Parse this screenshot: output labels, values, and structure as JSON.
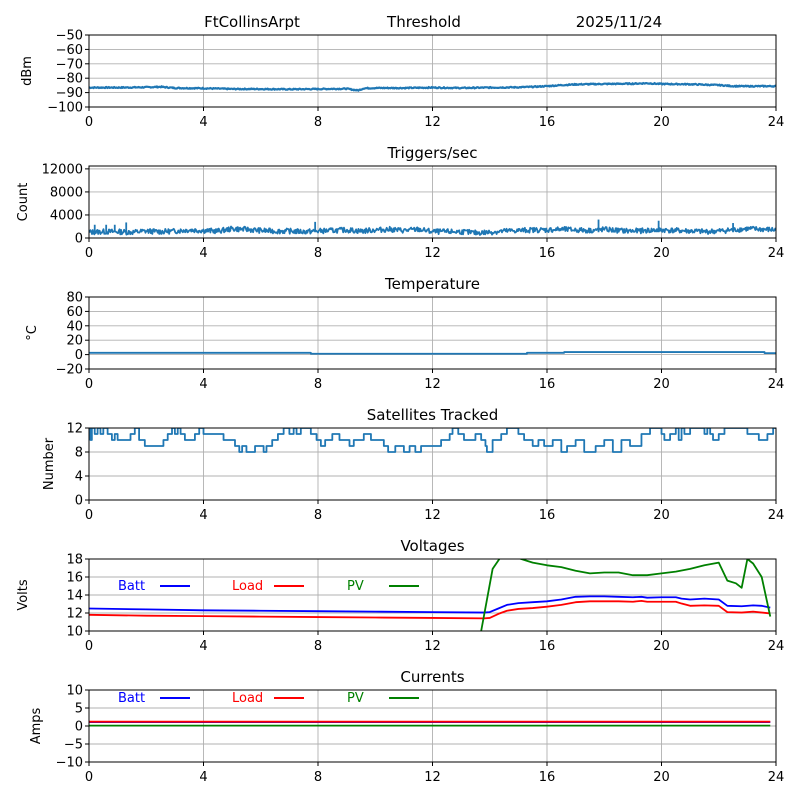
{
  "header": {
    "station": "FtCollinsArpt",
    "mode": "Threshold",
    "date": "2025/11/24"
  },
  "chart_data": [
    {
      "id": "threshold",
      "type": "line",
      "title": "",
      "xlabel": "",
      "ylabel": "dBm",
      "xlim": [
        0,
        24
      ],
      "ylim": [
        -100,
        -50
      ],
      "xticks": [
        0,
        4,
        8,
        12,
        16,
        20,
        24
      ],
      "yticks": [
        -100,
        -90,
        -80,
        -70,
        -60,
        -50
      ],
      "ytick_labels": [
        "−100",
        "−90",
        "−80",
        "−70",
        "−60",
        "−50"
      ],
      "grid": true,
      "series": [
        {
          "name": "Threshold",
          "color": "#1f77b4",
          "x": [
            0,
            1,
            2,
            2.5,
            3,
            4,
            5,
            6,
            7,
            8,
            9,
            9.4,
            9.6,
            10,
            11,
            12,
            13,
            14,
            15,
            15.5,
            16,
            16.5,
            17,
            18,
            19,
            19.5,
            20,
            21,
            22,
            22.5,
            23,
            24
          ],
          "y": [
            -86.5,
            -86.5,
            -86.3,
            -86,
            -86.8,
            -87,
            -87.5,
            -87.5,
            -87.7,
            -87.5,
            -87.3,
            -88.5,
            -87,
            -86.8,
            -86.8,
            -86.5,
            -86.8,
            -86.5,
            -86.3,
            -86,
            -85.5,
            -84.8,
            -84.3,
            -84,
            -83.8,
            -83.5,
            -84,
            -84.2,
            -84.8,
            -85.5,
            -85.6,
            -85.5
          ]
        }
      ]
    },
    {
      "id": "triggers",
      "type": "line",
      "title": "Triggers/sec",
      "xlabel": "",
      "ylabel": "Count",
      "xlim": [
        0,
        24
      ],
      "ylim": [
        0,
        12500
      ],
      "xticks": [
        0,
        4,
        8,
        12,
        16,
        20,
        24
      ],
      "yticks": [
        0,
        4000,
        8000,
        12000
      ],
      "ytick_labels": [
        "0",
        "4000",
        "8000",
        "12000"
      ],
      "grid": true,
      "series": [
        {
          "name": "Triggers",
          "color": "#1f77b4",
          "x": [
            0,
            0.5,
            1,
            1.5,
            2,
            2.5,
            3,
            3.5,
            4,
            4.5,
            5,
            5.5,
            6,
            6.5,
            7,
            7.5,
            8,
            8.5,
            9,
            9.5,
            10,
            10.5,
            11,
            11.5,
            12,
            12.5,
            13,
            13.5,
            14,
            14.5,
            15,
            15.5,
            16,
            16.5,
            17,
            17.5,
            18,
            18.5,
            19,
            19.5,
            20,
            20.5,
            21,
            21.5,
            22,
            22.5,
            23,
            23.5,
            24
          ],
          "y": [
            1000,
            1100,
            1100,
            1000,
            1200,
            1100,
            1200,
            1400,
            1300,
            1200,
            1600,
            1500,
            1300,
            1200,
            1200,
            1100,
            1200,
            1300,
            1400,
            1200,
            1400,
            1500,
            1300,
            1500,
            1100,
            1100,
            1100,
            900,
            1000,
            1200,
            1300,
            1400,
            1400,
            1500,
            1400,
            1300,
            1500,
            1300,
            1200,
            1300,
            1400,
            1300,
            1200,
            1100,
            1200,
            1400,
            1600,
            1500,
            1400
          ],
          "spikes": [
            [
              0.2,
              2300
            ],
            [
              0.6,
              2300
            ],
            [
              0.9,
              2300
            ],
            [
              1.3,
              2700
            ],
            [
              7.9,
              2800
            ],
            [
              17.8,
              3200
            ],
            [
              19.9,
              3000
            ],
            [
              22.5,
              2600
            ]
          ]
        }
      ]
    },
    {
      "id": "temperature",
      "type": "line",
      "title": "Temperature",
      "xlabel": "",
      "ylabel": "°C",
      "xlim": [
        0,
        24
      ],
      "ylim": [
        -20,
        80
      ],
      "xticks": [
        0,
        4,
        8,
        12,
        16,
        20,
        24
      ],
      "yticks": [
        -20,
        0,
        20,
        40,
        60,
        80
      ],
      "ytick_labels": [
        "−20",
        "0",
        "20",
        "40",
        "60",
        "80"
      ],
      "grid": true,
      "series": [
        {
          "name": "Temperature",
          "color": "#1f77b4",
          "x": [
            0,
            7.75,
            7.75,
            15.3,
            15.3,
            16.6,
            16.6,
            23.6,
            23.6,
            24
          ],
          "y": [
            2.5,
            2.5,
            1.2,
            1.2,
            2.5,
            2.5,
            3.5,
            3.5,
            2,
            2
          ]
        }
      ]
    },
    {
      "id": "satellites",
      "type": "line",
      "title": "Satellites Tracked",
      "xlabel": "",
      "ylabel": "Number",
      "xlim": [
        0,
        24
      ],
      "ylim": [
        0,
        12
      ],
      "xticks": [
        0,
        4,
        8,
        12,
        16,
        20,
        24
      ],
      "yticks": [
        0,
        4,
        8,
        12
      ],
      "ytick_labels": [
        "0",
        "4",
        "8",
        "12"
      ],
      "grid": true,
      "series": [
        {
          "name": "Satellites",
          "color": "#1f77b4",
          "step": true,
          "x": [
            0,
            0.05,
            0.1,
            0.2,
            0.3,
            0.4,
            0.5,
            0.65,
            0.8,
            0.9,
            1.0,
            1.45,
            1.6,
            1.75,
            1.95,
            2.6,
            2.75,
            2.9,
            3.0,
            3.1,
            3.2,
            3.35,
            3.7,
            3.85,
            4.0,
            4.3,
            4.7,
            5.1,
            5.25,
            5.35,
            5.5,
            5.8,
            6.1,
            6.2,
            6.4,
            6.6,
            6.8,
            7.0,
            7.15,
            7.25,
            7.4,
            7.75,
            7.95,
            8.1,
            8.25,
            8.5,
            8.75,
            9.1,
            9.25,
            9.6,
            9.85,
            10.3,
            10.45,
            10.7,
            11.0,
            11.2,
            11.4,
            11.6,
            12.3,
            12.6,
            12.7,
            12.9,
            13.1,
            13.5,
            13.7,
            13.85,
            13.9,
            14.1,
            14.4,
            14.6,
            15.0,
            15.2,
            15.5,
            15.7,
            15.9,
            16.2,
            16.5,
            16.7,
            17.0,
            17.3,
            17.7,
            18.0,
            18.3,
            18.6,
            18.9,
            19.3,
            19.6,
            20.0,
            20.1,
            20.3,
            20.5,
            20.6,
            20.7,
            20.8,
            21.0,
            21.5,
            21.6,
            21.7,
            21.8,
            22.0,
            22.2,
            23.0,
            23.4,
            23.7,
            23.9,
            24
          ],
          "y": [
            12,
            10,
            12,
            11,
            12,
            11,
            12,
            11,
            10,
            11,
            10,
            11,
            12,
            10,
            9,
            10,
            11,
            12,
            11,
            12,
            11,
            10,
            11,
            12,
            11,
            11,
            10,
            9,
            8,
            9,
            8,
            9,
            8,
            9,
            10,
            11,
            12,
            11,
            12,
            11,
            12,
            11,
            10,
            9,
            10,
            11,
            10,
            9,
            10,
            11,
            10,
            9,
            8,
            9,
            8,
            9,
            8,
            9,
            10,
            11,
            12,
            11,
            10,
            11,
            10,
            9,
            8,
            10,
            11,
            12,
            11,
            10,
            9,
            10,
            9,
            10,
            8,
            9,
            10,
            8,
            9,
            10,
            8,
            10,
            9,
            11,
            12,
            11,
            10,
            11,
            12,
            10,
            12,
            11,
            12,
            11,
            12,
            11,
            10,
            11,
            12,
            11,
            10,
            11,
            12,
            12
          ]
        }
      ]
    },
    {
      "id": "voltages",
      "type": "line",
      "title": "Voltages",
      "xlabel": "",
      "ylabel": "Volts",
      "xlim": [
        0,
        24
      ],
      "ylim": [
        10,
        18
      ],
      "xticks": [
        0,
        4,
        8,
        12,
        16,
        20,
        24
      ],
      "yticks": [
        10,
        12,
        14,
        16,
        18
      ],
      "ytick_labels": [
        "10",
        "12",
        "14",
        "16",
        "18"
      ],
      "grid": true,
      "legend": {
        "placement": "top-left",
        "orientation": "horizontal"
      },
      "series": [
        {
          "name": "Batt",
          "color": "#0000ff",
          "x": [
            0,
            2,
            4,
            6,
            8,
            10,
            12,
            13.8,
            14.0,
            14.3,
            14.6,
            15.0,
            15.5,
            16.0,
            16.5,
            17.0,
            17.5,
            18.0,
            18.5,
            19.0,
            19.3,
            19.5,
            20.0,
            20.5,
            20.7,
            21.0,
            21.5,
            22.0,
            22.3,
            22.8,
            23.2,
            23.5,
            23.8
          ],
          "y": [
            12.5,
            12.4,
            12.3,
            12.25,
            12.2,
            12.15,
            12.1,
            12.05,
            12.1,
            12.5,
            12.9,
            13.1,
            13.2,
            13.3,
            13.5,
            13.8,
            13.85,
            13.85,
            13.8,
            13.75,
            13.8,
            13.7,
            13.75,
            13.75,
            13.6,
            13.5,
            13.6,
            13.5,
            12.8,
            12.75,
            12.85,
            12.8,
            12.6
          ]
        },
        {
          "name": "Load",
          "color": "#ff0000",
          "x": [
            0,
            2,
            4,
            6,
            8,
            10,
            12,
            13.8,
            14.0,
            14.3,
            14.6,
            15.0,
            15.5,
            16.0,
            16.5,
            17.0,
            17.5,
            18.0,
            18.5,
            19.0,
            19.3,
            19.5,
            20.0,
            20.5,
            20.7,
            21.0,
            21.5,
            22.0,
            22.3,
            22.8,
            23.2,
            23.5,
            23.8
          ],
          "y": [
            11.8,
            11.7,
            11.65,
            11.6,
            11.55,
            11.5,
            11.45,
            11.4,
            11.45,
            11.9,
            12.25,
            12.45,
            12.55,
            12.7,
            12.9,
            13.2,
            13.3,
            13.3,
            13.3,
            13.25,
            13.35,
            13.25,
            13.25,
            13.25,
            13.05,
            12.8,
            12.85,
            12.8,
            12.1,
            12.05,
            12.15,
            12.05,
            11.95
          ]
        },
        {
          "name": "PV",
          "color": "#008000",
          "x": [
            13.7,
            14.1,
            14.4,
            15.0,
            15.5,
            16.0,
            16.5,
            17.0,
            17.5,
            18.0,
            18.5,
            19.0,
            19.5,
            20.0,
            20.5,
            21.0,
            21.5,
            22.0,
            22.3,
            22.6,
            22.8,
            23.0,
            23.2,
            23.5,
            23.8
          ],
          "y": [
            10,
            16.9,
            18.3,
            18.1,
            17.6,
            17.3,
            17.1,
            16.7,
            16.4,
            16.5,
            16.5,
            16.2,
            16.2,
            16.4,
            16.6,
            16.9,
            17.3,
            17.6,
            15.6,
            15.3,
            14.8,
            18.0,
            17.5,
            16.0,
            11.6
          ]
        }
      ]
    },
    {
      "id": "currents",
      "type": "line",
      "title": "Currents",
      "xlabel": "",
      "ylabel": "Amps",
      "xlim": [
        0,
        24
      ],
      "ylim": [
        -10,
        10
      ],
      "xticks": [
        0,
        4,
        8,
        12,
        16,
        20,
        24
      ],
      "yticks": [
        -10,
        -5,
        0,
        5,
        10
      ],
      "ytick_labels": [
        "−10",
        "−5",
        "0",
        "5",
        "10"
      ],
      "grid": true,
      "legend": {
        "placement": "top-left",
        "orientation": "horizontal"
      },
      "series": [
        {
          "name": "Batt",
          "color": "#0000ff",
          "x": [
            0,
            23.8
          ],
          "y": [
            1.1,
            1.1
          ]
        },
        {
          "name": "Load",
          "color": "#ff0000",
          "x": [
            0,
            23.8
          ],
          "y": [
            1.2,
            1.2
          ]
        },
        {
          "name": "PV",
          "color": "#008000",
          "x": [
            0,
            23.8
          ],
          "y": [
            0.1,
            0.1
          ]
        }
      ]
    }
  ]
}
